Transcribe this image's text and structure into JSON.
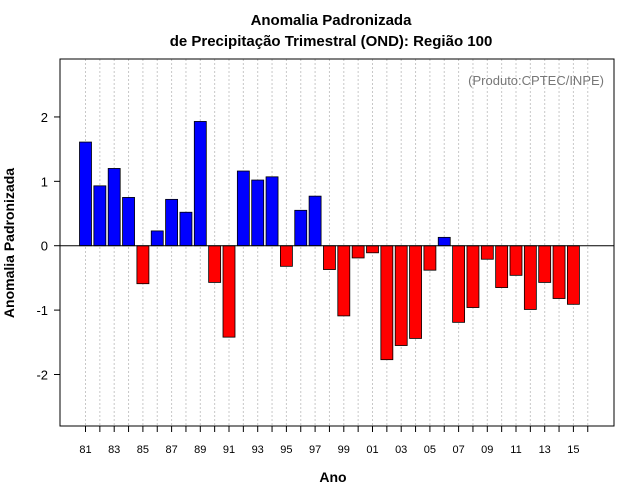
{
  "chart_data": {
    "type": "bar",
    "title": "Anomalia Padronizada",
    "subtitle": "de Precipitação Trimestral (OND): Região 100",
    "xlabel": "Ano",
    "ylabel": "Anomalia Padronizada",
    "credit": "(Produto:CPTEC/INPE)",
    "ylim": [
      -2.8,
      2.9
    ],
    "yticks": [
      -2,
      -1,
      0,
      1,
      2
    ],
    "ytick_labels": [
      "-2",
      "-1",
      "0",
      "1",
      "2"
    ],
    "categories": [
      "1981",
      "1982",
      "1983",
      "1984",
      "1985",
      "1986",
      "1987",
      "1988",
      "1989",
      "1990",
      "1991",
      "1992",
      "1993",
      "1994",
      "1995",
      "1996",
      "1997",
      "1998",
      "1999",
      "2000",
      "2001",
      "2002",
      "2003",
      "2004",
      "2005",
      "2006",
      "2007",
      "2008",
      "2009",
      "2010",
      "2011",
      "2012",
      "2013",
      "2014",
      "2015"
    ],
    "xtick_labels": [
      "81",
      "83",
      "85",
      "87",
      "89",
      "91",
      "93",
      "95",
      "97",
      "99",
      "01",
      "03",
      "05",
      "07",
      "09",
      "11",
      "13",
      "15"
    ],
    "values": [
      1.61,
      0.93,
      1.2,
      0.75,
      -0.59,
      0.23,
      0.72,
      0.52,
      1.93,
      -0.57,
      -1.42,
      1.16,
      1.02,
      1.07,
      -0.32,
      0.55,
      0.77,
      -0.37,
      -1.09,
      -0.19,
      -0.11,
      -1.77,
      -1.55,
      -1.44,
      -0.38,
      0.13,
      -1.19,
      -0.96,
      -0.21,
      -0.65,
      -0.46,
      -0.99,
      -0.57,
      -0.82,
      -0.91
    ],
    "colors": {
      "positive": "#0000ff",
      "negative": "#ff0000",
      "grid": "#c8c8c8",
      "zero_line": "#000000"
    },
    "grid": true
  }
}
